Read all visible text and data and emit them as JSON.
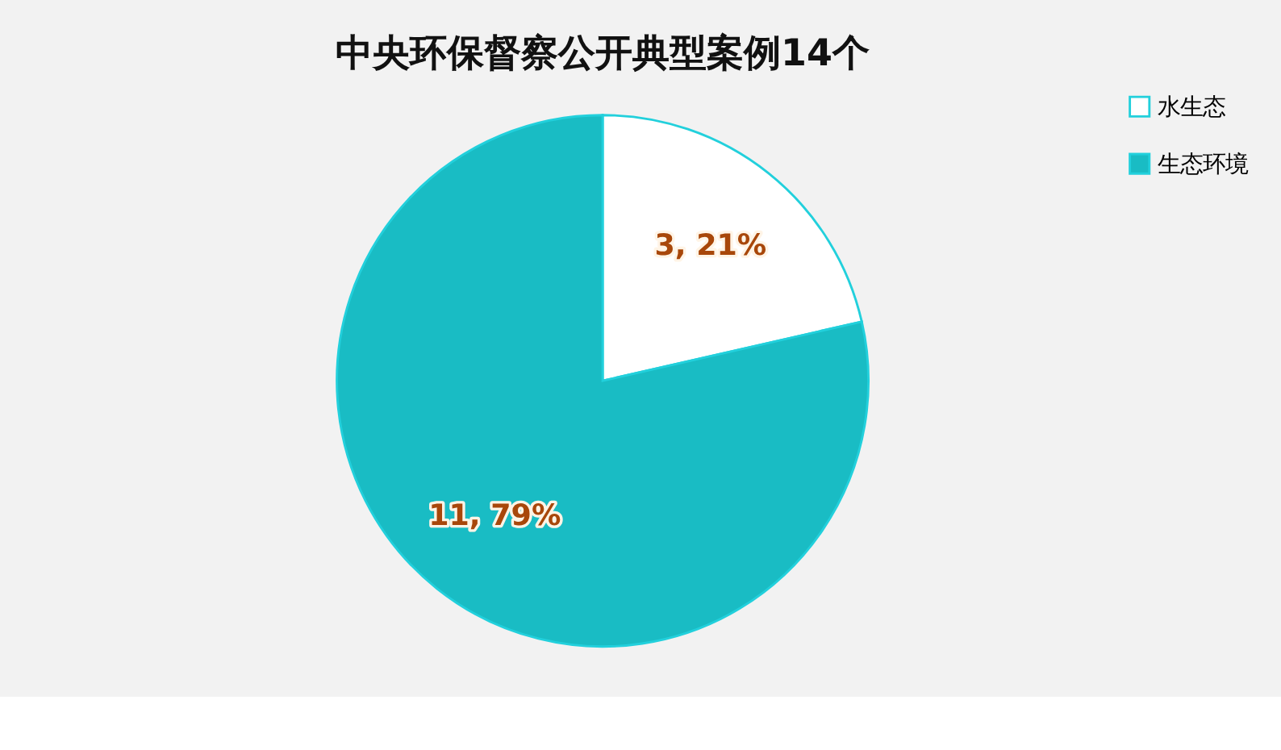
{
  "chart_data": {
    "type": "pie",
    "title": "中央环保督察公开典型案例14个",
    "categories": [
      "水生态",
      "生态环境"
    ],
    "values": [
      3,
      11
    ],
    "colors": [
      "#ffffff",
      "#19bcc4"
    ],
    "value_labels": [
      "3, 21%",
      "11, 79%"
    ],
    "legend": "right"
  }
}
